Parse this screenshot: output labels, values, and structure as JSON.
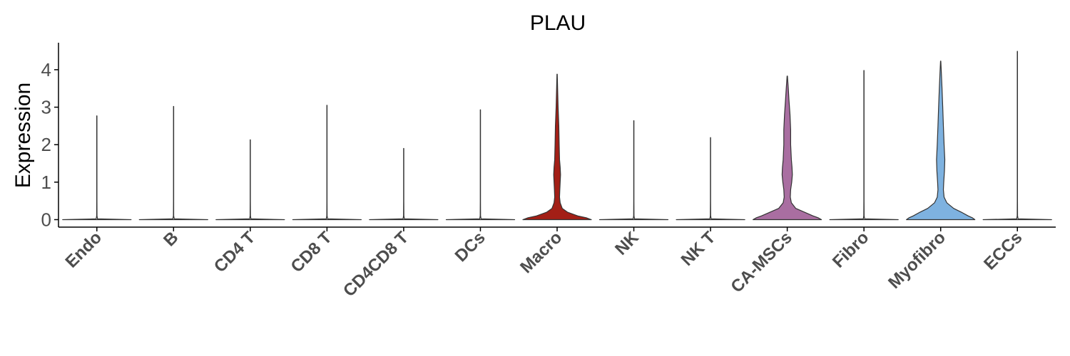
{
  "chart_data": {
    "type": "violin",
    "title": "PLAU",
    "xlabel": "",
    "ylabel": "Expression",
    "ylim": [
      -0.2,
      4.72
    ],
    "yticks": [
      "0",
      "1",
      "2",
      "3",
      "4"
    ],
    "grid": false,
    "legend": "none",
    "categories": [
      "Endo",
      "B",
      "CD4 T",
      "CD8 T",
      "CD4CD8 T",
      "DCs",
      "Macro",
      "NK",
      "NK T",
      "CA-MSCs",
      "Fibro",
      "Myofibro",
      "ECCs"
    ],
    "max_values": [
      2.77,
      3.02,
      2.13,
      3.05,
      1.9,
      2.93,
      3.88,
      2.64,
      2.19,
      3.83,
      3.98,
      4.23,
      4.49
    ],
    "fills": [
      "#ffffff",
      "#ffffff",
      "#ffffff",
      "#ffffff",
      "#ffffff",
      "#ffffff",
      "#a31f16",
      "#ffffff",
      "#ffffff",
      "#a96ea1",
      "#ffffff",
      "#7eb2e0",
      "#ffffff"
    ],
    "shapes": [
      [
        [
          0,
          1
        ],
        [
          0.02,
          0.02
        ],
        [
          0.1,
          0.005
        ],
        [
          0.5,
          0.003
        ],
        [
          2.77,
          0.003
        ]
      ],
      [
        [
          0,
          1
        ],
        [
          0.02,
          0.02
        ],
        [
          0.1,
          0.005
        ],
        [
          0.5,
          0.003
        ],
        [
          3.02,
          0.003
        ]
      ],
      [
        [
          0,
          1
        ],
        [
          0.02,
          0.02
        ],
        [
          0.1,
          0.005
        ],
        [
          0.5,
          0.003
        ],
        [
          2.13,
          0.003
        ]
      ],
      [
        [
          0,
          1
        ],
        [
          0.02,
          0.02
        ],
        [
          0.1,
          0.005
        ],
        [
          0.5,
          0.003
        ],
        [
          3.05,
          0.003
        ]
      ],
      [
        [
          0,
          1
        ],
        [
          0.02,
          0.02
        ],
        [
          0.1,
          0.005
        ],
        [
          0.5,
          0.003
        ],
        [
          1.9,
          0.003
        ]
      ],
      [
        [
          0,
          1
        ],
        [
          0.02,
          0.02
        ],
        [
          0.1,
          0.005
        ],
        [
          0.5,
          0.003
        ],
        [
          2.93,
          0.003
        ]
      ],
      [
        [
          0,
          1
        ],
        [
          0.05,
          0.85
        ],
        [
          0.1,
          0.6
        ],
        [
          0.2,
          0.3
        ],
        [
          0.3,
          0.15
        ],
        [
          0.45,
          0.09
        ],
        [
          0.6,
          0.07
        ],
        [
          0.8,
          0.08
        ],
        [
          1.0,
          0.09
        ],
        [
          1.2,
          0.1
        ],
        [
          1.4,
          0.09
        ],
        [
          1.6,
          0.07
        ],
        [
          2.0,
          0.06
        ],
        [
          2.5,
          0.05
        ],
        [
          3.0,
          0.03
        ],
        [
          3.5,
          0.015
        ],
        [
          3.88,
          0.005
        ]
      ],
      [
        [
          0,
          1
        ],
        [
          0.02,
          0.02
        ],
        [
          0.1,
          0.005
        ],
        [
          0.5,
          0.003
        ],
        [
          2.64,
          0.003
        ]
      ],
      [
        [
          0,
          1
        ],
        [
          0.02,
          0.02
        ],
        [
          0.1,
          0.005
        ],
        [
          0.5,
          0.003
        ],
        [
          2.19,
          0.003
        ]
      ],
      [
        [
          0,
          1
        ],
        [
          0.05,
          0.9
        ],
        [
          0.1,
          0.75
        ],
        [
          0.2,
          0.5
        ],
        [
          0.3,
          0.25
        ],
        [
          0.45,
          0.12
        ],
        [
          0.6,
          0.09
        ],
        [
          0.8,
          0.1
        ],
        [
          1.0,
          0.13
        ],
        [
          1.2,
          0.15
        ],
        [
          1.4,
          0.14
        ],
        [
          1.6,
          0.12
        ],
        [
          2.0,
          0.1
        ],
        [
          2.4,
          0.1
        ],
        [
          2.8,
          0.08
        ],
        [
          3.2,
          0.05
        ],
        [
          3.5,
          0.03
        ],
        [
          3.83,
          0.005
        ]
      ],
      [
        [
          0,
          1
        ],
        [
          0.02,
          0.02
        ],
        [
          0.1,
          0.005
        ],
        [
          0.5,
          0.003
        ],
        [
          3.98,
          0.003
        ]
      ],
      [
        [
          0,
          1
        ],
        [
          0.05,
          0.92
        ],
        [
          0.1,
          0.8
        ],
        [
          0.2,
          0.6
        ],
        [
          0.3,
          0.38
        ],
        [
          0.45,
          0.18
        ],
        [
          0.6,
          0.1
        ],
        [
          0.8,
          0.08
        ],
        [
          1.0,
          0.09
        ],
        [
          1.3,
          0.11
        ],
        [
          1.6,
          0.12
        ],
        [
          2.0,
          0.1
        ],
        [
          2.5,
          0.08
        ],
        [
          3.0,
          0.06
        ],
        [
          3.5,
          0.04
        ],
        [
          3.9,
          0.02
        ],
        [
          4.23,
          0.005
        ]
      ],
      [
        [
          0,
          1
        ],
        [
          0.02,
          0.02
        ],
        [
          0.1,
          0.005
        ],
        [
          0.5,
          0.003
        ],
        [
          4.49,
          0.003
        ]
      ]
    ]
  }
}
